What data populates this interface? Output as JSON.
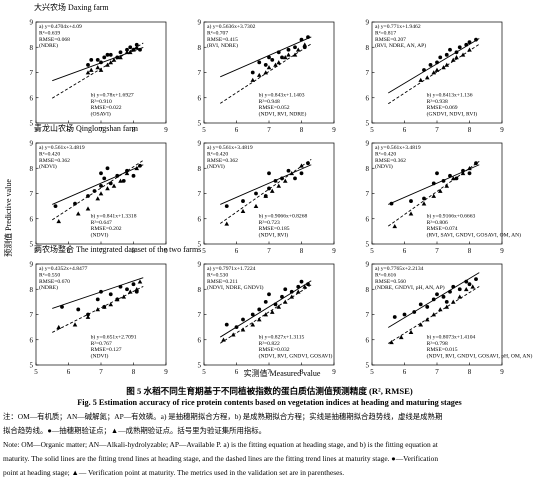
{
  "figure": {
    "rows": [
      {
        "title": "大兴农场 Daxing farm"
      },
      {
        "title": "青龙山农场 Qinglongshan farm"
      },
      {
        "title": "两农场整合 The integrated dataset of the two farms"
      }
    ],
    "ylabel": "预测值 Predictive value",
    "xlabel": "实测值 Measured value",
    "caption_cn": "图 5  水稻不同生育期基于不同植被指数的蛋白质估测值预测精度 (R², RMSE)",
    "caption_en": "Fig. 5   Estimation accuracy of rice protein contents based on vegetation indices at heading and maturing stages",
    "notes": [
      "注：OM—有机质；AN—碱解氮；AP—有效磷。a) 是抽穗期拟合方程，b) 是成熟期拟合方程；实线是抽穗期拟合趋势线，虚线是成熟期",
      "拟合趋势线。●—抽穗期验证点；▲—成熟期验证点。括号里为验证集所用指标。",
      "Note: OM—Organic matter; AN—Alkali-hydrolyzable; AP—Available P. a) is the fitting equation at heading stage, and b) is the fitting equation at",
      "maturity. The solid lines are the fitting trend lines at heading stage, and the dashed lines are the fitting trend lines at maturity stage. ●—Verification",
      "point at heading stage; ▲— Verification point at maturity. The metrics used in the validation set are in parentheses."
    ]
  },
  "chart_data": [
    {
      "type": "scatter",
      "panel": "Daxing-1",
      "xticks": [
        5,
        6,
        7,
        8,
        9
      ],
      "yticks": [
        5,
        6,
        7,
        8,
        9
      ],
      "xlim": [
        5,
        9
      ],
      "ylim": [
        5,
        9
      ],
      "a": {
        "eq": "a) y=0.4704x+4.09",
        "r2": "R²=0.639",
        "rmse": "RMSE=0.068",
        "metrics": "(NDRE)",
        "slope": 0.4704,
        "intercept": 4.09
      },
      "b": {
        "eq": "b) y=0.78x+1.6927",
        "r2": "R²=0.910",
        "rmse": "RMSE=0.022",
        "metrics": "(OSAVI)",
        "slope": 0.78,
        "intercept": 1.6927
      },
      "heading_points": [
        [
          6.6,
          7.3
        ],
        [
          6.7,
          7.5
        ],
        [
          6.9,
          7.5
        ],
        [
          7.0,
          7.4
        ],
        [
          7.1,
          7.6
        ],
        [
          7.2,
          7.7
        ],
        [
          7.3,
          7.7
        ],
        [
          7.5,
          7.6
        ],
        [
          7.6,
          7.8
        ],
        [
          7.8,
          7.9
        ],
        [
          7.9,
          8.0
        ],
        [
          8.0,
          7.9
        ],
        [
          8.1,
          8.1
        ],
        [
          8.2,
          7.9
        ]
      ],
      "maturity_points": [
        [
          6.6,
          7.0
        ],
        [
          6.7,
          7.1
        ],
        [
          6.9,
          7.2
        ],
        [
          7.0,
          7.1
        ],
        [
          7.2,
          7.3
        ],
        [
          7.3,
          7.4
        ],
        [
          7.4,
          7.5
        ],
        [
          7.6,
          7.6
        ],
        [
          7.8,
          7.8
        ],
        [
          7.9,
          7.8
        ],
        [
          8.0,
          7.9
        ],
        [
          8.1,
          8.0
        ]
      ]
    },
    {
      "type": "scatter",
      "panel": "Daxing-2",
      "xticks": [
        5,
        6,
        7,
        8,
        9
      ],
      "yticks": [
        5,
        6,
        7,
        8,
        9
      ],
      "xlim": [
        5,
        9
      ],
      "ylim": [
        5,
        9
      ],
      "a": {
        "eq": "a) y=0.5636x+3.7302",
        "r2": "R²=0.707",
        "rmse": "RMSE=0.415",
        "metrics": "(RVI, NDRE)",
        "slope": 0.5636,
        "intercept": 3.7302
      },
      "b": {
        "eq": "b) y=0.843x+1.1403",
        "r2": "R²=0.948",
        "rmse": "RMSE=0.052",
        "metrics": "(NDVI, RVI, NDRE)",
        "slope": 0.843,
        "intercept": 1.1403
      },
      "heading_points": [
        [
          6.5,
          7.0
        ],
        [
          6.7,
          7.4
        ],
        [
          6.9,
          7.3
        ],
        [
          7.0,
          7.6
        ],
        [
          7.1,
          7.5
        ],
        [
          7.3,
          7.8
        ],
        [
          7.4,
          7.6
        ],
        [
          7.6,
          7.9
        ],
        [
          7.8,
          8.0
        ],
        [
          8.0,
          8.3
        ],
        [
          8.1,
          8.0
        ],
        [
          8.2,
          8.4
        ]
      ],
      "maturity_points": [
        [
          6.5,
          6.7
        ],
        [
          6.7,
          6.9
        ],
        [
          6.9,
          7.0
        ],
        [
          7.0,
          7.2
        ],
        [
          7.2,
          7.3
        ],
        [
          7.3,
          7.4
        ],
        [
          7.5,
          7.6
        ],
        [
          7.6,
          7.7
        ],
        [
          7.8,
          7.7
        ],
        [
          7.9,
          7.9
        ],
        [
          8.1,
          8.1
        ]
      ]
    },
    {
      "type": "scatter",
      "panel": "Daxing-3",
      "xticks": [
        5,
        6,
        7,
        8,
        9
      ],
      "yticks": [
        5,
        6,
        7,
        8,
        9
      ],
      "xlim": [
        5,
        9
      ],
      "ylim": [
        5,
        9
      ],
      "a": {
        "eq": "a) y=0.771x+1.9462",
        "r2": "R²=0.817",
        "rmse": "RMSE=0.207",
        "metrics": "(RVI, NDRE, AN, AP)",
        "slope": 0.771,
        "intercept": 1.9462
      },
      "b": {
        "eq": "b) y=0.8413x+1.136",
        "r2": "R²=0.938",
        "rmse": "RMSE=0.069",
        "metrics": "(GNDVI, NDVI, RVI)",
        "slope": 0.8413,
        "intercept": 1.136
      },
      "heading_points": [
        [
          6.6,
          7.1
        ],
        [
          6.8,
          7.3
        ],
        [
          7.0,
          7.4
        ],
        [
          7.1,
          7.6
        ],
        [
          7.3,
          7.7
        ],
        [
          7.4,
          7.9
        ],
        [
          7.6,
          7.8
        ],
        [
          7.7,
          8.0
        ],
        [
          7.9,
          8.1
        ],
        [
          8.0,
          8.2
        ],
        [
          8.2,
          8.3
        ]
      ],
      "maturity_points": [
        [
          6.5,
          6.7
        ],
        [
          6.7,
          6.8
        ],
        [
          6.9,
          7.0
        ],
        [
          7.0,
          7.1
        ],
        [
          7.2,
          7.2
        ],
        [
          7.3,
          7.3
        ],
        [
          7.5,
          7.5
        ],
        [
          7.6,
          7.6
        ],
        [
          7.8,
          7.7
        ],
        [
          8.0,
          7.9
        ]
      ]
    },
    {
      "type": "scatter",
      "panel": "Qinglongshan-1",
      "xticks": [
        5,
        6,
        7,
        8,
        9
      ],
      "yticks": [
        5,
        6,
        7,
        8,
        9
      ],
      "xlim": [
        5,
        9
      ],
      "ylim": [
        5,
        9
      ],
      "a": {
        "eq": "a) y=0.561x+3.4819",
        "r2": "R²=0.420",
        "rmse": "RMSE=0.362",
        "metrics": "(NDVI)",
        "slope": 0.561,
        "intercept": 3.4819
      },
      "b": {
        "eq": "b) y=0.841x+1.3318",
        "r2": "R²=0.647",
        "rmse": "RMSE=0.202",
        "metrics": "(NDVI)",
        "slope": 0.841,
        "intercept": 1.3318
      },
      "heading_points": [
        [
          5.6,
          6.5
        ],
        [
          6.2,
          6.6
        ],
        [
          6.6,
          6.9
        ],
        [
          7.0,
          7.3
        ],
        [
          7.0,
          7.8
        ],
        [
          7.1,
          7.6
        ],
        [
          7.3,
          7.4
        ],
        [
          7.5,
          7.7
        ],
        [
          7.7,
          7.5
        ],
        [
          7.8,
          7.9
        ],
        [
          8.0,
          7.7
        ],
        [
          8.2,
          8.1
        ],
        [
          7.2,
          8.0
        ],
        [
          6.8,
          7.1
        ]
      ],
      "maturity_points": [
        [
          5.7,
          5.9
        ],
        [
          6.3,
          6.2
        ],
        [
          6.6,
          6.4
        ],
        [
          6.9,
          6.8
        ],
        [
          7.0,
          7.0
        ],
        [
          7.2,
          7.2
        ],
        [
          7.4,
          7.3
        ],
        [
          7.6,
          7.5
        ],
        [
          7.8,
          7.8
        ],
        [
          8.1,
          8.0
        ]
      ]
    },
    {
      "type": "scatter",
      "panel": "Qinglongshan-2",
      "xticks": [
        5,
        6,
        7,
        8,
        9
      ],
      "yticks": [
        5,
        6,
        7,
        8,
        9
      ],
      "xlim": [
        5,
        9
      ],
      "ylim": [
        5,
        9
      ],
      "a": {
        "eq": "a) y=0.561x+3.4819",
        "r2": "R²=0.420",
        "rmse": "RMSE=0.362",
        "metrics": "(NDVI)",
        "slope": 0.561,
        "intercept": 3.4819
      },
      "b": {
        "eq": "b) y=0.9066x+0.8268",
        "r2": "R²=0.723",
        "rmse": "RMSE=0.185",
        "metrics": "(NDVI, RVI)",
        "slope": 0.9066,
        "intercept": 0.8268
      },
      "heading_points": [
        [
          5.7,
          6.5
        ],
        [
          6.2,
          6.7
        ],
        [
          6.6,
          7.0
        ],
        [
          7.0,
          7.2
        ],
        [
          7.0,
          7.8
        ],
        [
          7.2,
          7.5
        ],
        [
          7.4,
          7.6
        ],
        [
          7.6,
          7.9
        ],
        [
          7.8,
          7.6
        ],
        [
          8.0,
          7.8
        ],
        [
          8.2,
          8.2
        ],
        [
          6.9,
          6.9
        ]
      ],
      "maturity_points": [
        [
          5.7,
          5.8
        ],
        [
          6.2,
          6.3
        ],
        [
          6.6,
          6.5
        ],
        [
          6.9,
          6.9
        ],
        [
          7.1,
          7.1
        ],
        [
          7.3,
          7.3
        ],
        [
          7.5,
          7.5
        ],
        [
          7.7,
          7.8
        ],
        [
          8.0,
          8.1
        ]
      ]
    },
    {
      "type": "scatter",
      "panel": "Qinglongshan-3",
      "xticks": [
        5,
        6,
        7,
        8,
        9
      ],
      "yticks": [
        5,
        6,
        7,
        8,
        9
      ],
      "xlim": [
        5,
        9
      ],
      "ylim": [
        5,
        9
      ],
      "a": {
        "eq": "a) y=0.561x+3.4819",
        "r2": "R²=0.420",
        "rmse": "RMSE=0.362",
        "metrics": "(NDVI)",
        "slope": 0.561,
        "intercept": 3.4819
      },
      "b": {
        "eq": "b) y=0.9166x+0.6663",
        "r2": "R²=0.806",
        "rmse": "RMSE=0.074",
        "metrics": "(RVI, SAVI, GNDVI, GOSAVI, OM, AN)",
        "slope": 0.9166,
        "intercept": 0.6663
      },
      "heading_points": [
        [
          5.6,
          6.6
        ],
        [
          6.2,
          6.7
        ],
        [
          6.6,
          6.8
        ],
        [
          6.9,
          7.4
        ],
        [
          7.0,
          7.8
        ],
        [
          7.2,
          7.5
        ],
        [
          7.4,
          7.7
        ],
        [
          7.6,
          7.6
        ],
        [
          7.8,
          7.9
        ],
        [
          8.0,
          7.8
        ],
        [
          8.2,
          8.2
        ]
      ],
      "maturity_points": [
        [
          5.7,
          5.7
        ],
        [
          6.2,
          6.2
        ],
        [
          6.6,
          6.6
        ],
        [
          6.9,
          6.9
        ],
        [
          7.1,
          7.1
        ],
        [
          7.3,
          7.3
        ],
        [
          7.5,
          7.6
        ],
        [
          7.8,
          7.8
        ],
        [
          8.0,
          8.0
        ]
      ]
    },
    {
      "type": "scatter",
      "panel": "Integrated-1",
      "xticks": [
        5,
        6,
        7,
        8,
        9
      ],
      "yticks": [
        5,
        6,
        7,
        8,
        9
      ],
      "xlim": [
        5,
        9
      ],
      "ylim": [
        5,
        9
      ],
      "a": {
        "eq": "a) y=0.4352x+4.8477",
        "r2": "R²=0.550",
        "rmse": "RMSE=0.670",
        "metrics": "(NDRE)",
        "slope": 0.4352,
        "intercept": 4.8477
      },
      "b": {
        "eq": "b) y=0.651x+2.7091",
        "r2": "R²=0.767",
        "rmse": "RMSE=0.127",
        "metrics": "(NDVI)",
        "slope": 0.651,
        "intercept": 2.7091
      },
      "heading_points": [
        [
          5.8,
          7.3
        ],
        [
          6.3,
          7.2
        ],
        [
          6.6,
          7.0
        ],
        [
          6.9,
          7.6
        ],
        [
          7.0,
          7.9
        ],
        [
          7.1,
          7.3
        ],
        [
          7.3,
          7.8
        ],
        [
          7.5,
          7.6
        ],
        [
          7.6,
          8.1
        ],
        [
          7.8,
          8.0
        ],
        [
          8.0,
          8.2
        ],
        [
          8.1,
          7.9
        ]
      ],
      "maturity_points": [
        [
          5.7,
          6.5
        ],
        [
          6.2,
          6.6
        ],
        [
          6.6,
          6.9
        ],
        [
          6.9,
          7.2
        ],
        [
          7.1,
          7.3
        ],
        [
          7.3,
          7.4
        ],
        [
          7.5,
          7.6
        ],
        [
          7.7,
          7.7
        ],
        [
          7.9,
          7.9
        ],
        [
          8.1,
          8.0
        ],
        [
          8.2,
          8.3
        ]
      ]
    },
    {
      "type": "scatter",
      "panel": "Integrated-2",
      "xticks": [
        5,
        6,
        7,
        8,
        9
      ],
      "yticks": [
        5,
        6,
        7,
        8,
        9
      ],
      "xlim": [
        5,
        9
      ],
      "ylim": [
        5,
        9
      ],
      "a": {
        "eq": "a) y=0.7971x+1.7224",
        "r2": "R²=0.530",
        "rmse": "RMSE=0.211",
        "metrics": "(NDVI, NDRE, GNDVI)",
        "slope": 0.7971,
        "intercept": 1.7224
      },
      "b": {
        "eq": "b) y=0.827x+1.3115",
        "r2": "R²=0.822",
        "rmse": "RMSE=0.032",
        "metrics": "(NDVI, RVI, GNDVI, GOSAVI)",
        "slope": 0.827,
        "intercept": 1.3115
      },
      "heading_points": [
        [
          5.7,
          6.6
        ],
        [
          6.0,
          6.5
        ],
        [
          6.2,
          6.8
        ],
        [
          6.5,
          7.0
        ],
        [
          6.7,
          7.2
        ],
        [
          6.9,
          7.5
        ],
        [
          7.0,
          7.8
        ],
        [
          7.2,
          7.4
        ],
        [
          7.4,
          7.7
        ],
        [
          7.5,
          8.0
        ],
        [
          7.7,
          7.9
        ],
        [
          7.9,
          8.1
        ],
        [
          8.0,
          8.3
        ],
        [
          8.2,
          8.2
        ]
      ],
      "maturity_points": [
        [
          5.6,
          6.0
        ],
        [
          5.9,
          6.2
        ],
        [
          6.2,
          6.4
        ],
        [
          6.5,
          6.6
        ],
        [
          6.7,
          6.8
        ],
        [
          6.9,
          7.0
        ],
        [
          7.1,
          7.1
        ],
        [
          7.3,
          7.3
        ],
        [
          7.5,
          7.5
        ],
        [
          7.7,
          7.7
        ],
        [
          7.9,
          7.9
        ],
        [
          8.1,
          8.1
        ]
      ]
    },
    {
      "type": "scatter",
      "panel": "Integrated-3",
      "xticks": [
        5,
        6,
        7,
        8,
        9
      ],
      "yticks": [
        5,
        6,
        7,
        8,
        9
      ],
      "xlim": [
        5,
        9
      ],
      "ylim": [
        5,
        9
      ],
      "a": {
        "eq": "a) y=0.7765x+2.2134",
        "r2": "R²=0.616",
        "rmse": "RMSE=0.560",
        "metrics": "(NDRE, GNDVI, pH, AN, AP)",
        "slope": 0.7765,
        "intercept": 2.2134
      },
      "b": {
        "eq": "b) y=0.8073x+1.4104",
        "r2": "R²=0.798",
        "rmse": "RMSE=0.015",
        "metrics": "(NDVI, RVI, GNDVI, GOSAVI, pH, OM, AN)",
        "slope": 0.8073,
        "intercept": 1.4104
      },
      "heading_points": [
        [
          5.7,
          6.9
        ],
        [
          6.0,
          7.0
        ],
        [
          6.3,
          7.1
        ],
        [
          6.5,
          7.4
        ],
        [
          6.7,
          7.3
        ],
        [
          6.9,
          7.6
        ],
        [
          7.0,
          7.8
        ],
        [
          7.2,
          7.7
        ],
        [
          7.4,
          7.9
        ],
        [
          7.5,
          8.1
        ],
        [
          7.7,
          8.0
        ],
        [
          7.9,
          8.3
        ],
        [
          8.0,
          8.2
        ],
        [
          8.2,
          8.4
        ],
        [
          7.3,
          7.5
        ]
      ],
      "maturity_points": [
        [
          5.6,
          5.9
        ],
        [
          5.9,
          6.1
        ],
        [
          6.2,
          6.3
        ],
        [
          6.5,
          6.6
        ],
        [
          6.7,
          6.8
        ],
        [
          6.9,
          7.0
        ],
        [
          7.1,
          7.2
        ],
        [
          7.3,
          7.3
        ],
        [
          7.5,
          7.5
        ],
        [
          7.7,
          7.7
        ],
        [
          7.9,
          8.0
        ],
        [
          8.1,
          8.1
        ]
      ]
    }
  ]
}
